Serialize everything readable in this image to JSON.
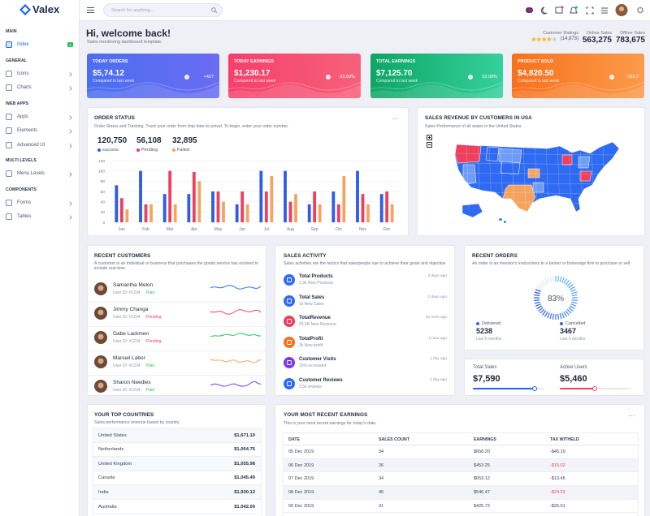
{
  "brand": "Valex",
  "search_placeholder": "Search for anything...",
  "sidebar": [
    {
      "heading": "MAIN",
      "items": [
        {
          "label": "Index",
          "badge": "1"
        }
      ]
    },
    {
      "heading": "GENERAL",
      "items": [
        {
          "label": "Icons"
        },
        {
          "label": "Charts"
        }
      ]
    },
    {
      "heading": "WEB APPS",
      "items": [
        {
          "label": "Apps"
        },
        {
          "label": "Elements"
        },
        {
          "label": "Advanced UI"
        }
      ]
    },
    {
      "heading": "MULTI LEVELS",
      "items": [
        {
          "label": "Menu Levels"
        }
      ]
    },
    {
      "heading": "COMPONENTS",
      "items": [
        {
          "label": "Forms"
        },
        {
          "label": "Tables"
        }
      ]
    }
  ],
  "welcome": {
    "title": "Hi, welcome back!",
    "subtitle": "Sales monitoring dashboard template."
  },
  "header_stats": [
    {
      "label": "Customer Ratings",
      "value": "(14,873)"
    },
    {
      "label": "Online Sales",
      "value": "563,275"
    },
    {
      "label": "Offline Sales",
      "value": "783,675"
    }
  ],
  "cards": [
    {
      "title": "TODAY ORDERS",
      "value": "$5,74.12",
      "note": "Compared to last week",
      "change": "+427"
    },
    {
      "title": "TODAY EARNINGS",
      "value": "$1,230.17",
      "note": "Compared to last week",
      "change": "-23.09%"
    },
    {
      "title": "TOTAL EARNINGS",
      "value": "$7,125.70",
      "note": "Compared to last week",
      "change": "52.09%"
    },
    {
      "title": "PRODUCT SOLD",
      "value": "$4,820.50",
      "note": "Compared to last week",
      "change": "-152.3"
    }
  ],
  "order_status": {
    "title": "ORDER STATUS",
    "description": "Order Status and Tracking. Track your order from ship date to arrival. To begin, enter your order number.",
    "totals": [
      "120,750",
      "56,108",
      "32,895"
    ]
  },
  "chart_data": {
    "type": "bar",
    "categories": [
      "Jan",
      "Feb",
      "Mar",
      "Apr",
      "May",
      "Jun",
      "Jul",
      "Aug",
      "Sep",
      "Oct",
      "Nov",
      "Dec"
    ],
    "series": [
      {
        "name": "success",
        "color": "#2b5de8",
        "values": [
          72,
          100,
          55,
          55,
          60,
          35,
          100,
          100,
          35,
          60,
          100,
          55
        ]
      },
      {
        "name": "Pending",
        "color": "#ee3f5c",
        "values": [
          47,
          35,
          100,
          98,
          60,
          60,
          60,
          40,
          60,
          35,
          55,
          60
        ]
      },
      {
        "name": "Failed",
        "color": "#f5a460",
        "values": [
          25,
          35,
          35,
          80,
          40,
          35,
          90,
          55,
          35,
          90,
          35,
          35
        ]
      }
    ],
    "ylim": [
      0,
      120
    ],
    "yticks": [
      0,
      20,
      40,
      60,
      80,
      100,
      120
    ],
    "grid": true
  },
  "sales_revenue": {
    "title": "SALES REVENUE BY CUSTOMERS IN USA",
    "subtitle": "Sales Performance of all states in the United States"
  },
  "recent_customers": {
    "title": "RECENT CUSTOMERS",
    "description": "A customer is an individual or business that purchases the goods service has evolved to include real-time",
    "items": [
      {
        "name": "Samantha Melon",
        "id": "User ID: #1234",
        "status": "Paid"
      },
      {
        "name": "Jimmy Changa",
        "id": "User ID: #1234",
        "status": "Pending"
      },
      {
        "name": "Gabe Lackmen",
        "id": "User ID: #1234",
        "status": "Pending"
      },
      {
        "name": "Manuel Labor",
        "id": "User ID: #1234",
        "status": "Paid"
      },
      {
        "name": "Sharon Needles",
        "id": "User ID: #1234",
        "status": "Paid"
      }
    ]
  },
  "sales_activity": {
    "title": "SALES ACTIVITY",
    "description": "Sales activities are the tactics that salespeople use to achieve their goals and objective",
    "items": [
      {
        "title": "Total Products",
        "detail": "1.3k New Products",
        "time": "3 days ago"
      },
      {
        "title": "Total Sales",
        "detail": "1k New Sales",
        "time": "2 days ago"
      },
      {
        "title": "TotalRevenue",
        "detail": "23.5K New Revenue",
        "time": "30 mins ago"
      },
      {
        "title": "TotalProfit",
        "detail": "3k New profit",
        "time": "1 hour ago"
      },
      {
        "title": "Customer Visits",
        "detail": "15% increased",
        "time": "1 day ago"
      },
      {
        "title": "Customer Reviews",
        "detail": "1.5k reviews",
        "time": "1 day ago"
      }
    ]
  },
  "recent_orders": {
    "title": "RECENT ORDERS",
    "description": "An order is an investor's instructions to a broker or brokerage firm to purchase or sell",
    "gauge": {
      "value": 83,
      "label": "83%"
    },
    "delivered": {
      "label": "Delivered",
      "value": "5238",
      "note": "Last 6 months"
    },
    "cancelled": {
      "label": "Cancelled",
      "value": "3467",
      "note": "Last 6 months"
    }
  },
  "totals_panel": [
    {
      "label": "Total Sales",
      "value": "$7,590"
    },
    {
      "label": "Active Users",
      "value": "$5,460"
    }
  ],
  "top_countries": {
    "title": "YOUR TOP COUNTRIES",
    "description": "Sales performance revenue based by country",
    "rows": [
      [
        "United States",
        "$1,671.10"
      ],
      [
        "Netherlands",
        "$1,064.75"
      ],
      [
        "United Kingdom",
        "$1,055.98"
      ],
      [
        "Canada",
        "$1,045.49"
      ],
      [
        "India",
        "$1,930.12"
      ],
      [
        "Australia",
        "$1,042.00"
      ]
    ]
  },
  "earnings": {
    "title": "YOUR MOST RECENT EARNINGS",
    "description": "This is your most recent earnings for today's date.",
    "columns": [
      "DATE",
      "SALES COUNT",
      "EARNINGS",
      "TAX WITHELD"
    ],
    "rows": [
      [
        "05 Dec 2019",
        "34",
        "$658.20",
        "-$45.10"
      ],
      [
        "06 Dec 2019",
        "26",
        "$453.25",
        "-$15.02"
      ],
      [
        "07 Dec 2019",
        "34",
        "$653.12",
        "-$13.45"
      ],
      [
        "08 Dec 2019",
        "45",
        "$546.47",
        "-$24.22"
      ],
      [
        "09 Dec 2019",
        "31",
        "$425.72",
        "-$25.01"
      ]
    ]
  }
}
